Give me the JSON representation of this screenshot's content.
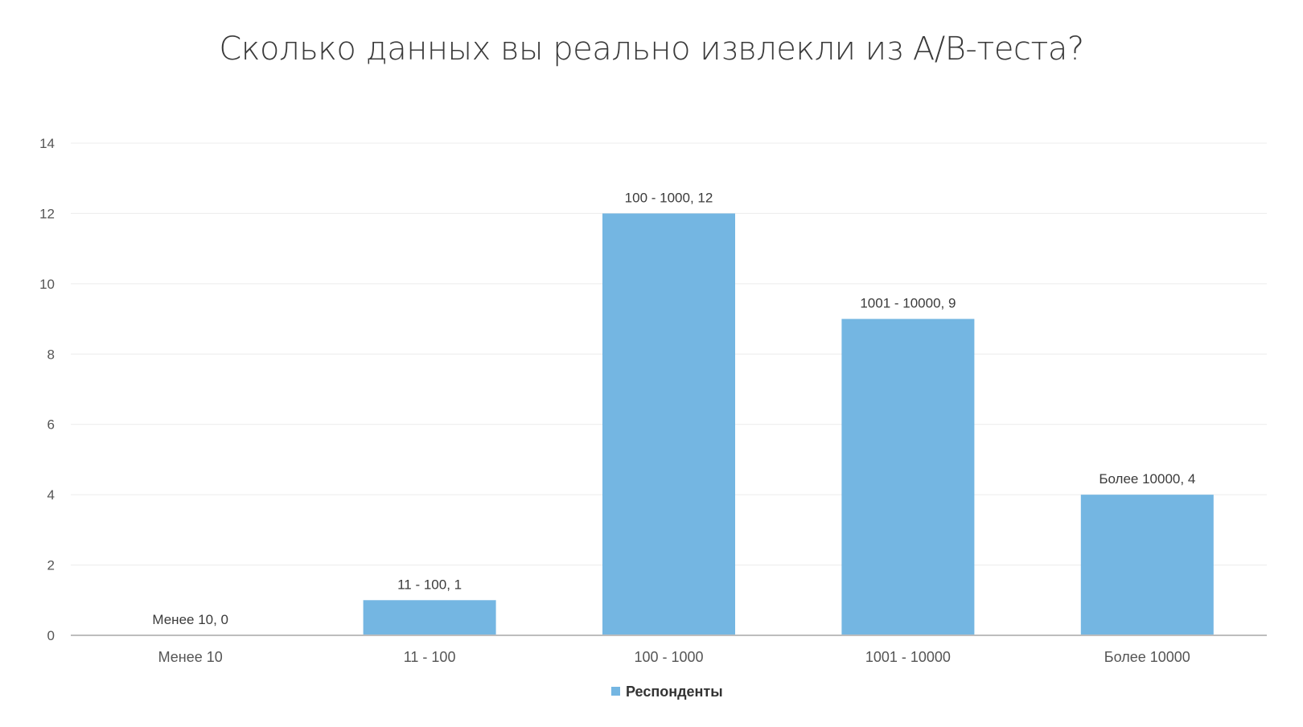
{
  "chart_data": {
    "type": "bar",
    "title": "Сколько данных вы реально извлекли из A/B-теста?",
    "xlabel": "",
    "ylabel": "",
    "categories": [
      "Менее 10",
      "11 - 100",
      "100 - 1000",
      "1001 - 10000",
      "Более 10000"
    ],
    "series": [
      {
        "name": "Респонденты",
        "values": [
          0,
          1,
          12,
          9,
          4
        ],
        "color": "#74b6e2"
      }
    ],
    "data_labels": [
      "Менее 10, 0",
      "11 - 100, 1",
      "100 - 1000, 12",
      "1001 - 10000, 9",
      "Более 10000, 4"
    ],
    "ylim": [
      0,
      14
    ],
    "yticks": [
      0,
      2,
      4,
      6,
      8,
      10,
      12,
      14
    ],
    "grid": true,
    "legend": "bottom"
  }
}
